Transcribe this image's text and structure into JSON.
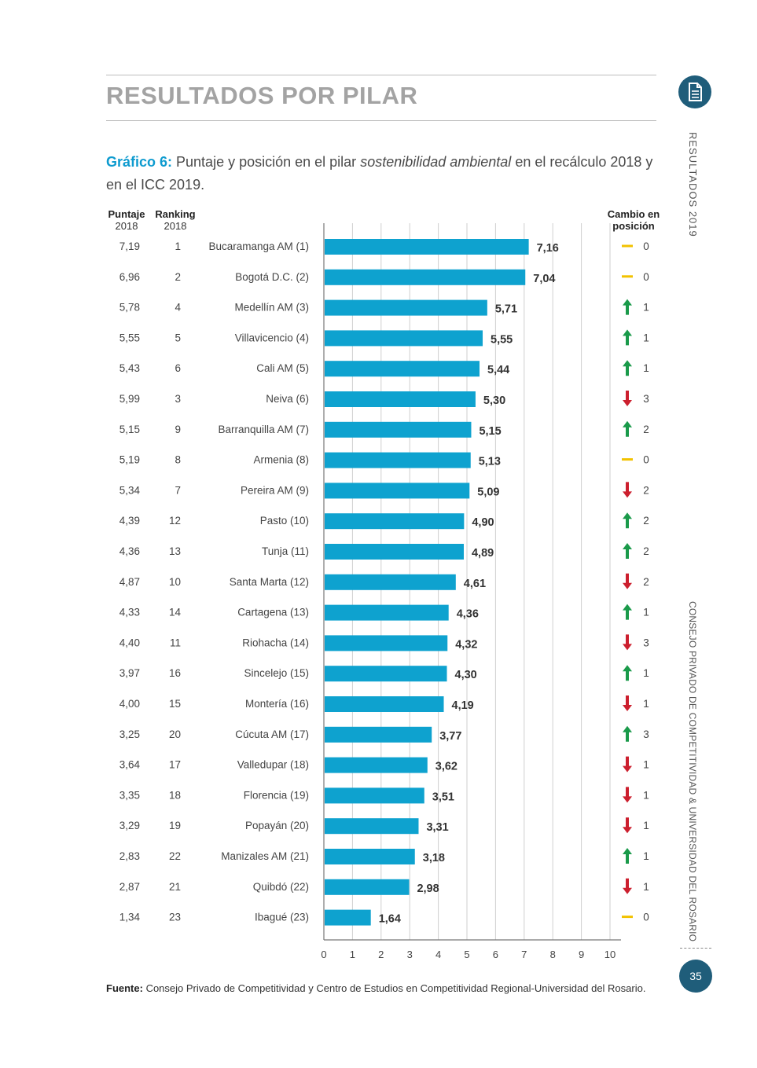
{
  "section_title": "RESULTADOS POR PILAR",
  "caption": {
    "label": "Gráfico 6:",
    "text_before": " Puntaje y posición en el pilar ",
    "text_italic": "sostenibilidad ambiental",
    "text_after": " en el recálculo 2018 y en el ICC 2019."
  },
  "headers": {
    "puntaje_1": "Puntaje",
    "puntaje_2": "2018",
    "ranking_1": "Ranking",
    "ranking_2": "2018",
    "cambio_1": "Cambio en",
    "cambio_2": "posición"
  },
  "side_text": {
    "top": "RESULTADOS 2019",
    "bottom": "CONSEJO PRIVADO DE COMPETITIVIDAD & UNIVERSIDAD DEL ROSARIO"
  },
  "page_number": "35",
  "source": {
    "label": "Fuente:",
    "text": " Consejo Privado de Competitividad y Centro de Estudios en Competitividad Regional-Universidad del Rosario."
  },
  "colors": {
    "bar": "#0ea2cf",
    "up": "#1a9a4a",
    "down": "#cc1f2e",
    "same": "#f2c200",
    "heading_blue": "#0e9bcf",
    "circle": "#1f5d7a"
  },
  "chart_data": {
    "type": "bar",
    "orientation": "horizontal",
    "xlim": [
      0,
      10
    ],
    "x_ticks": [
      "0",
      "1",
      "2",
      "3",
      "4",
      "5",
      "6",
      "7",
      "8",
      "9",
      "10"
    ],
    "grid": true,
    "rows": [
      {
        "city": "Bucaramanga AM (1)",
        "puntaje_2018": "7,19",
        "ranking_2018": "1",
        "value": 7.16,
        "value_label": "7,16",
        "change": "same",
        "change_value": "0"
      },
      {
        "city": "Bogotá D.C. (2)",
        "puntaje_2018": "6,96",
        "ranking_2018": "2",
        "value": 7.04,
        "value_label": "7,04",
        "change": "same",
        "change_value": "0"
      },
      {
        "city": "Medellín AM (3)",
        "puntaje_2018": "5,78",
        "ranking_2018": "4",
        "value": 5.71,
        "value_label": "5,71",
        "change": "up",
        "change_value": "1"
      },
      {
        "city": "Villavicencio (4)",
        "puntaje_2018": "5,55",
        "ranking_2018": "5",
        "value": 5.55,
        "value_label": "5,55",
        "change": "up",
        "change_value": "1"
      },
      {
        "city": "Cali AM (5)",
        "puntaje_2018": "5,43",
        "ranking_2018": "6",
        "value": 5.44,
        "value_label": "5,44",
        "change": "up",
        "change_value": "1"
      },
      {
        "city": "Neiva (6)",
        "puntaje_2018": "5,99",
        "ranking_2018": "3",
        "value": 5.3,
        "value_label": "5,30",
        "change": "down",
        "change_value": "3"
      },
      {
        "city": "Barranquilla AM (7)",
        "puntaje_2018": "5,15",
        "ranking_2018": "9",
        "value": 5.15,
        "value_label": "5,15",
        "change": "up",
        "change_value": "2"
      },
      {
        "city": "Armenia (8)",
        "puntaje_2018": "5,19",
        "ranking_2018": "8",
        "value": 5.13,
        "value_label": "5,13",
        "change": "same",
        "change_value": "0"
      },
      {
        "city": "Pereira AM (9)",
        "puntaje_2018": "5,34",
        "ranking_2018": "7",
        "value": 5.09,
        "value_label": "5,09",
        "change": "down",
        "change_value": "2"
      },
      {
        "city": "Pasto (10)",
        "puntaje_2018": "4,39",
        "ranking_2018": "12",
        "value": 4.9,
        "value_label": "4,90",
        "change": "up",
        "change_value": "2"
      },
      {
        "city": "Tunja (11)",
        "puntaje_2018": "4,36",
        "ranking_2018": "13",
        "value": 4.89,
        "value_label": "4,89",
        "change": "up",
        "change_value": "2"
      },
      {
        "city": "Santa Marta (12)",
        "puntaje_2018": "4,87",
        "ranking_2018": "10",
        "value": 4.61,
        "value_label": "4,61",
        "change": "down",
        "change_value": "2"
      },
      {
        "city": "Cartagena (13)",
        "puntaje_2018": "4,33",
        "ranking_2018": "14",
        "value": 4.36,
        "value_label": "4,36",
        "change": "up",
        "change_value": "1"
      },
      {
        "city": "Riohacha (14)",
        "puntaje_2018": "4,40",
        "ranking_2018": "11",
        "value": 4.32,
        "value_label": "4,32",
        "change": "down",
        "change_value": "3"
      },
      {
        "city": "Sincelejo (15)",
        "puntaje_2018": "3,97",
        "ranking_2018": "16",
        "value": 4.3,
        "value_label": "4,30",
        "change": "up",
        "change_value": "1"
      },
      {
        "city": "Montería (16)",
        "puntaje_2018": "4,00",
        "ranking_2018": "15",
        "value": 4.19,
        "value_label": "4,19",
        "change": "down",
        "change_value": "1"
      },
      {
        "city": "Cúcuta AM (17)",
        "puntaje_2018": "3,25",
        "ranking_2018": "20",
        "value": 3.77,
        "value_label": "3,77",
        "change": "up",
        "change_value": "3"
      },
      {
        "city": "Valledupar (18)",
        "puntaje_2018": "3,64",
        "ranking_2018": "17",
        "value": 3.62,
        "value_label": "3,62",
        "change": "down",
        "change_value": "1"
      },
      {
        "city": "Florencia (19)",
        "puntaje_2018": "3,35",
        "ranking_2018": "18",
        "value": 3.51,
        "value_label": "3,51",
        "change": "down",
        "change_value": "1"
      },
      {
        "city": "Popayán (20)",
        "puntaje_2018": "3,29",
        "ranking_2018": "19",
        "value": 3.31,
        "value_label": "3,31",
        "change": "down",
        "change_value": "1"
      },
      {
        "city": "Manizales AM (21)",
        "puntaje_2018": "2,83",
        "ranking_2018": "22",
        "value": 3.18,
        "value_label": "3,18",
        "change": "up",
        "change_value": "1"
      },
      {
        "city": "Quibdó (22)",
        "puntaje_2018": "2,87",
        "ranking_2018": "21",
        "value": 2.98,
        "value_label": "2,98",
        "change": "down",
        "change_value": "1"
      },
      {
        "city": "Ibagué (23)",
        "puntaje_2018": "1,34",
        "ranking_2018": "23",
        "value": 1.64,
        "value_label": "1,64",
        "change": "same",
        "change_value": "0"
      }
    ]
  }
}
